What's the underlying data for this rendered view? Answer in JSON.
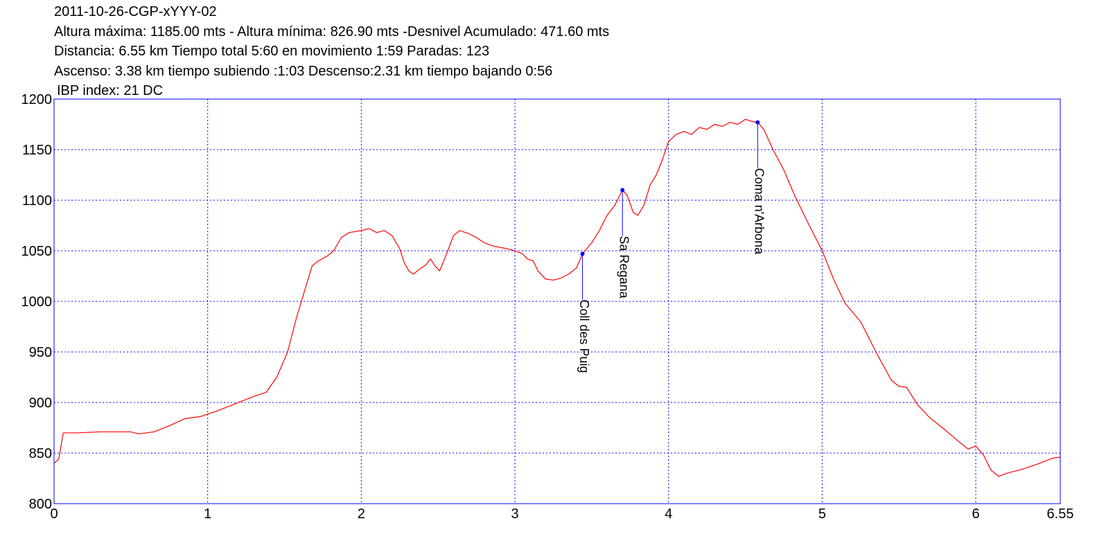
{
  "header": {
    "line1": "2011-10-26-CGP-xYYY-02",
    "line2": "Altura máxima: 1185.00 mts - Altura mínima: 826.90 mts -Desnivel Acumulado: 471.60 mts",
    "line3": "Distancia: 6.55 km  Tiempo total 5:60  en movimiento 1:59 Paradas: 123",
    "line4": "Ascenso: 3.38 km  tiempo subiendo :1:03  Descenso:2.31 km tiempo bajando 0:56",
    "line5": "IBP index: 21 DC"
  },
  "colors": {
    "profile": "#ff0000",
    "frame": "#0000ff",
    "grid": "#0000ff",
    "waypoint": "#0000ff"
  },
  "chart_data": {
    "type": "line",
    "xlim": [
      0,
      6.55
    ],
    "ylim": [
      800,
      1200
    ],
    "grid": true,
    "x_ticks": [
      0,
      1,
      2,
      3,
      4,
      5,
      6,
      6.55
    ],
    "x_tick_labels": [
      "0",
      "1",
      "2",
      "3",
      "4",
      "5",
      "6",
      "6.55"
    ],
    "y_ticks": [
      800,
      850,
      900,
      950,
      1000,
      1050,
      1100,
      1150,
      1200
    ],
    "y_tick_labels": [
      "800",
      "850",
      "900",
      "950",
      "1000",
      "1050",
      "1100",
      "1150",
      "1200"
    ],
    "series": [
      {
        "points": [
          [
            0.0,
            840
          ],
          [
            0.03,
            844
          ],
          [
            0.06,
            870
          ],
          [
            0.15,
            870
          ],
          [
            0.3,
            871
          ],
          [
            0.45,
            871
          ],
          [
            0.5,
            871
          ],
          [
            0.55,
            869
          ],
          [
            0.65,
            871
          ],
          [
            0.75,
            877
          ],
          [
            0.85,
            884
          ],
          [
            0.95,
            886
          ],
          [
            1.05,
            891
          ],
          [
            1.15,
            897
          ],
          [
            1.25,
            903
          ],
          [
            1.3,
            906
          ],
          [
            1.38,
            910
          ],
          [
            1.45,
            925
          ],
          [
            1.52,
            950
          ],
          [
            1.58,
            985
          ],
          [
            1.63,
            1010
          ],
          [
            1.68,
            1035
          ],
          [
            1.72,
            1040
          ],
          [
            1.78,
            1045
          ],
          [
            1.82,
            1050
          ],
          [
            1.87,
            1063
          ],
          [
            1.92,
            1068
          ],
          [
            2.0,
            1070
          ],
          [
            2.05,
            1072
          ],
          [
            2.1,
            1068
          ],
          [
            2.15,
            1070
          ],
          [
            2.2,
            1065
          ],
          [
            2.25,
            1052
          ],
          [
            2.28,
            1038
          ],
          [
            2.31,
            1030
          ],
          [
            2.34,
            1027
          ],
          [
            2.38,
            1032
          ],
          [
            2.42,
            1036
          ],
          [
            2.45,
            1042
          ],
          [
            2.48,
            1035
          ],
          [
            2.51,
            1030
          ],
          [
            2.55,
            1045
          ],
          [
            2.6,
            1065
          ],
          [
            2.64,
            1070
          ],
          [
            2.7,
            1067
          ],
          [
            2.75,
            1063
          ],
          [
            2.8,
            1058
          ],
          [
            2.85,
            1055
          ],
          [
            2.95,
            1052
          ],
          [
            3.0,
            1050
          ],
          [
            3.05,
            1047
          ],
          [
            3.08,
            1042
          ],
          [
            3.12,
            1040
          ],
          [
            3.15,
            1030
          ],
          [
            3.2,
            1022
          ],
          [
            3.25,
            1021
          ],
          [
            3.3,
            1023
          ],
          [
            3.35,
            1027
          ],
          [
            3.4,
            1033
          ],
          [
            3.44,
            1047
          ],
          [
            3.5,
            1058
          ],
          [
            3.55,
            1070
          ],
          [
            3.6,
            1085
          ],
          [
            3.65,
            1095
          ],
          [
            3.7,
            1110
          ],
          [
            3.73,
            1105
          ],
          [
            3.77,
            1088
          ],
          [
            3.8,
            1085
          ],
          [
            3.84,
            1095
          ],
          [
            3.88,
            1115
          ],
          [
            3.92,
            1125
          ],
          [
            3.96,
            1140
          ],
          [
            4.0,
            1158
          ],
          [
            4.05,
            1165
          ],
          [
            4.1,
            1168
          ],
          [
            4.15,
            1165
          ],
          [
            4.2,
            1172
          ],
          [
            4.25,
            1170
          ],
          [
            4.3,
            1175
          ],
          [
            4.35,
            1173
          ],
          [
            4.4,
            1177
          ],
          [
            4.45,
            1175
          ],
          [
            4.5,
            1180
          ],
          [
            4.54,
            1178
          ],
          [
            4.58,
            1177
          ],
          [
            4.62,
            1170
          ],
          [
            4.68,
            1150
          ],
          [
            4.75,
            1130
          ],
          [
            4.82,
            1105
          ],
          [
            4.9,
            1080
          ],
          [
            5.0,
            1050
          ],
          [
            5.08,
            1020
          ],
          [
            5.15,
            998
          ],
          [
            5.25,
            980
          ],
          [
            5.35,
            950
          ],
          [
            5.45,
            922
          ],
          [
            5.5,
            916
          ],
          [
            5.55,
            915
          ],
          [
            5.62,
            898
          ],
          [
            5.7,
            885
          ],
          [
            5.8,
            873
          ],
          [
            5.9,
            860
          ],
          [
            5.95,
            854
          ],
          [
            6.0,
            857
          ],
          [
            6.05,
            848
          ],
          [
            6.1,
            833
          ],
          [
            6.15,
            827
          ],
          [
            6.2,
            830
          ],
          [
            6.3,
            834
          ],
          [
            6.4,
            839
          ],
          [
            6.5,
            845
          ],
          [
            6.55,
            846
          ]
        ]
      }
    ],
    "waypoints": [
      {
        "name": "Coll des Puig",
        "x": 3.44,
        "y": 1047
      },
      {
        "name": "Sa Regana",
        "x": 3.7,
        "y": 1110
      },
      {
        "name": "Coma n'Arbona",
        "x": 4.58,
        "y": 1177
      }
    ]
  }
}
